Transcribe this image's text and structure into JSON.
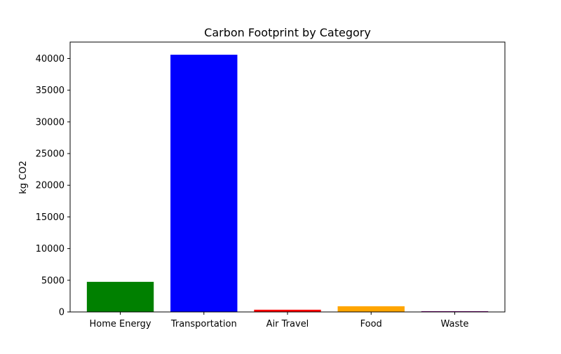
{
  "chart_data": {
    "type": "bar",
    "title": "Carbon Footprint by Category",
    "xlabel": "",
    "ylabel": "kg CO2",
    "categories": [
      "Home Energy",
      "Transportation",
      "Air Travel",
      "Food",
      "Waste"
    ],
    "values": [
      4750,
      40600,
      350,
      900,
      120
    ],
    "colors": [
      "#008000",
      "#0000ff",
      "#ff0000",
      "#ffa500",
      "#800080"
    ],
    "ylim": [
      0,
      42600
    ],
    "yticks": [
      0,
      5000,
      10000,
      15000,
      20000,
      25000,
      30000,
      35000,
      40000
    ],
    "ytick_labels": [
      "0",
      "5000",
      "10000",
      "15000",
      "20000",
      "25000",
      "30000",
      "35000",
      "40000"
    ],
    "grid": false,
    "legend": "none"
  }
}
